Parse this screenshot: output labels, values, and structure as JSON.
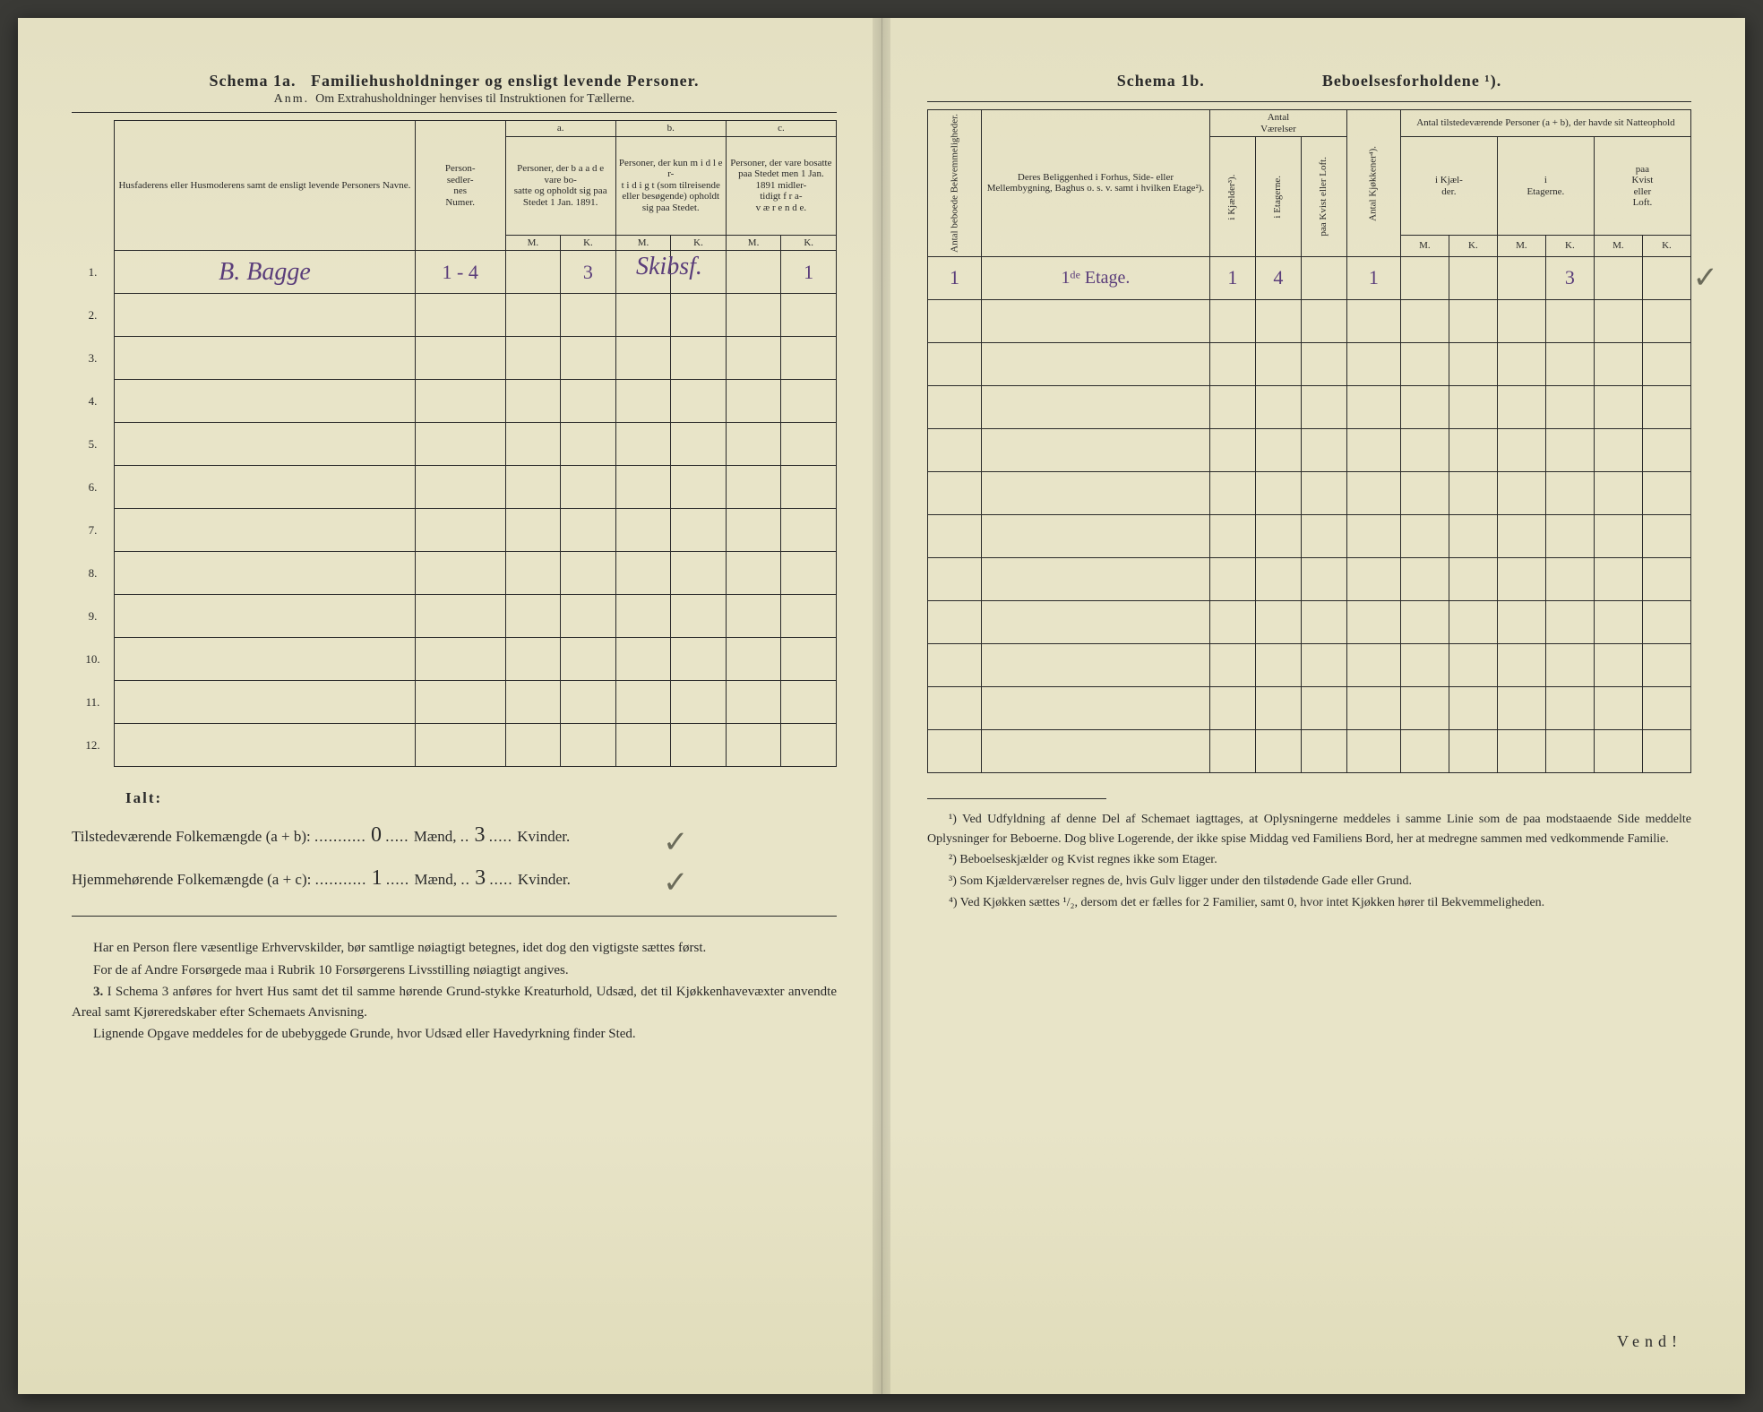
{
  "left": {
    "title_prefix": "Schema 1a.",
    "title_main": "Familiehusholdninger og ensligt levende Personer.",
    "subtitle_prefix": "Anm.",
    "subtitle": "Om Extrahusholdninger henvises til Instruktionen for Tællerne.",
    "headers": {
      "names": "Husfaderens eller Husmoderens samt de ensligt levende Personers Navne.",
      "personsedler": "Person-\nsedler-\nnes\nNumer.",
      "a_label": "a.",
      "a_text": "Personer, der b a a d e vare bo-\nsatte og opholdt sig paa Stedet 1 Jan. 1891.",
      "b_label": "b.",
      "b_text": "Personer, der kun m i d l e r-\nt i d i g t (som tilreisende eller besøgende) opholdt sig paa Stedet.",
      "c_label": "c.",
      "c_text": "Personer, der vare bosatte paa Stedet men 1 Jan. 1891 midler-\ntidigt f r a-\nv æ r e n d e.",
      "m": "M.",
      "k": "K."
    },
    "rows": [
      {
        "n": "1.",
        "name": "B. Bagge",
        "pers": "1 - 4",
        "a_m": "⁠",
        "a_k": "3",
        "b_m": "",
        "b_k": "",
        "c_m": "",
        "c_k": "1",
        "margin": "Skibsf."
      },
      {
        "n": "2."
      },
      {
        "n": "3."
      },
      {
        "n": "4."
      },
      {
        "n": "5."
      },
      {
        "n": "6."
      },
      {
        "n": "7."
      },
      {
        "n": "8."
      },
      {
        "n": "9."
      },
      {
        "n": "10."
      },
      {
        "n": "11."
      },
      {
        "n": "12."
      }
    ],
    "totals_label": "Ialt:",
    "totals_line1_label": "Tilstedeværende Folkemængde (a + b):",
    "totals_line1_maend": "0",
    "totals_line1_kvinder": "3",
    "totals_maend_word": "Mænd,",
    "totals_kvinder_word": "Kvinder.",
    "totals_line2_label": "Hjemmehørende Folkemængde (a + c):",
    "totals_line2_maend": "1",
    "totals_line2_kvinder": "3",
    "body_p1": "Har en Person flere væsentlige Erhvervskilder, bør samtlige nøiagtigt betegnes, idet dog den vigtigste sættes først.",
    "body_p2": "For de af Andre Forsørgede maa i Rubrik 10 Forsørgerens Livsstilling nøiagtigt angives.",
    "body_p3_label": "3.",
    "body_p3": "I Schema 3 anføres for hvert Hus samt det til samme hørende Grund-stykke Kreaturhold, Udsæd, det til Kjøkkenhavevæxter anvendte Areal samt Kjøreredskaber efter Schemaets Anvisning.",
    "body_p4": "Lignende Opgave meddeles for de ubebyggede Grunde, hvor Udsæd eller Havedyrkning finder Sted."
  },
  "right": {
    "title_prefix": "Schema 1b.",
    "title_main": "Beboelsesforholdene ¹).",
    "headers": {
      "antal_beboede": "Antal beboede\nBekvemmeligheder.",
      "beliggenhed": "Deres Beliggenhed i Forhus, Side- eller Mellembygning, Baghus o. s. v. samt i hvilken Etage²).",
      "antal_vaerelser": "Antal\nVærelser",
      "i_kjaelder": "i Kjælder³).",
      "i_etagerne": "i Etagerne.",
      "paa_kvist": "paa Kvist eller\nLoft.",
      "antal_kjokkener": "Antal Kjøkkener⁴).",
      "tilstedevaerende": "Antal tilstedeværende Personer (a + b), der havde sit Natteophold",
      "i_kjael_der": "i Kjæl-\nder.",
      "i_etagerne2": "i\nEtagerne.",
      "paa_kvist2": "paa\nKvist\neller\nLoft.",
      "m": "M.",
      "k": "K."
    },
    "rows": [
      {
        "beboede": "1",
        "belig": "1ᵈᵉ Etage.",
        "kj": "1",
        "et": "4",
        "kv": "",
        "kjok": "1",
        "km": "",
        "kk": "",
        "em": "",
        "ek": "3",
        "lm": "",
        "lk": ""
      },
      {},
      {},
      {},
      {},
      {},
      {},
      {},
      {},
      {},
      {},
      {}
    ],
    "footnote1": "¹) Ved Udfyldning af denne Del af Schemaet iagttages, at Oplysningerne meddeles i samme Linie som de paa modstaaende Side meddelte Oplysninger for Beboerne. Dog blive Logerende, der ikke spise Middag ved Familiens Bord, her at medregne sammen med vedkommende Familie.",
    "footnote2": "²) Beboelseskjælder og Kvist regnes ikke som Etager.",
    "footnote3": "³) Som Kjælderværelser regnes de, hvis Gulv ligger under den tilstødende Gade eller Grund.",
    "footnote4": "⁴) Ved Kjøkken sættes ¹/₂, dersom det er fælles for 2 Familier, samt 0, hvor intet Kjøkken hører til Bekvemmeligheden.",
    "vend": "Vend!"
  },
  "colors": {
    "paper": "#e8e4c8",
    "ink_print": "#2a2a2a",
    "ink_hand_purple": "#5a3d7a",
    "ink_hand_black": "#2a2a2a",
    "pencil": "#6b6b5a"
  }
}
